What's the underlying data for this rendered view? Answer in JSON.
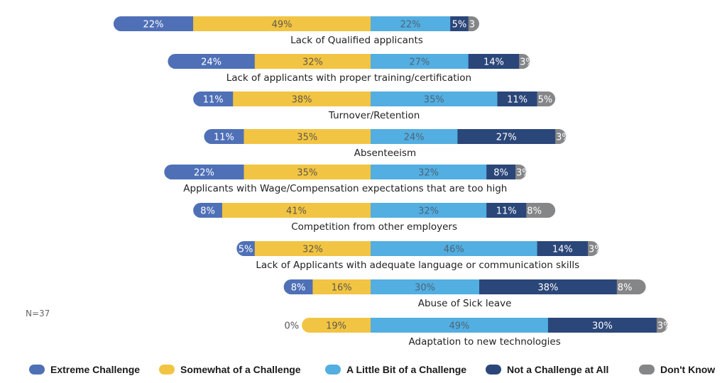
{
  "chart_data": {
    "type": "bar",
    "orientation": "horizontal",
    "stacked": true,
    "diverging": true,
    "title": "",
    "note": "N=37",
    "categories": [
      "Lack of Qualified applicants",
      "Lack of applicants with proper training/certification",
      "Turnover/Retention",
      "Absenteeism",
      "Applicants with Wage/Compensation expectations that are too high",
      "Competition from other employers",
      "Lack of Applicants with adequate language or communication skills",
      "Abuse of Sick leave",
      "Adaptation to new technologies"
    ],
    "series": [
      {
        "name": "Extreme Challenge",
        "color": "#4f70b7",
        "label_color": "#ffffff",
        "values": [
          22,
          24,
          11,
          11,
          22,
          8,
          5,
          8,
          0
        ]
      },
      {
        "name": "Somewhat of a Challenge",
        "color": "#f2c443",
        "label_color": "#5f5a4a",
        "values": [
          49,
          32,
          38,
          35,
          35,
          41,
          32,
          16,
          19
        ]
      },
      {
        "name": "A Little Bit of a Challenge",
        "color": "#53aee1",
        "label_color": "#4d6575",
        "values": [
          22,
          27,
          35,
          24,
          32,
          32,
          46,
          30,
          49
        ]
      },
      {
        "name": "Not a Challenge at All",
        "color": "#2b4679",
        "label_color": "#ffffff",
        "values": [
          5,
          14,
          11,
          27,
          8,
          11,
          14,
          38,
          30
        ]
      },
      {
        "name": "Don't Know",
        "color": "#858688",
        "label_color": "#ffffff",
        "values": [
          3,
          3,
          5,
          3,
          3,
          8,
          3,
          8,
          3
        ]
      }
    ],
    "segment_labels": [
      [
        "22%",
        "49%",
        "22%",
        "5%",
        "3"
      ],
      [
        "24%",
        "32%",
        "27%",
        "14%",
        "3%"
      ],
      [
        "11%",
        "38%",
        "35%",
        "11%",
        "5%"
      ],
      [
        "11%",
        "35%",
        "24%",
        "27%",
        "3%"
      ],
      [
        "22%",
        "35%",
        "32%",
        "8%",
        "3%"
      ],
      [
        "8%",
        "41%",
        "32%",
        "11%",
        "8%"
      ],
      [
        "5%",
        "32%",
        "46%",
        "14%",
        "3%"
      ],
      [
        "8%",
        "16%",
        "30%",
        "38%",
        "8%"
      ],
      [
        "0%",
        "19%",
        "49%",
        "30%",
        "3%"
      ]
    ],
    "legend": "bottom",
    "unit": "%"
  }
}
